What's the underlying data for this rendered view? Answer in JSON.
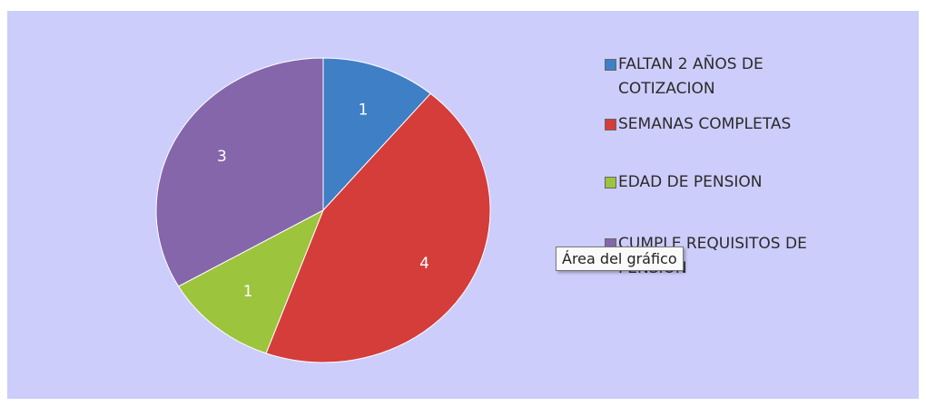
{
  "chart_data": {
    "type": "pie",
    "categories": [
      "FALTAN 2 AÑOS DE COTIZACION",
      "SEMANAS COMPLETAS",
      "EDAD DE PENSION",
      "CUMPLE REQUISITOS DE PENSION"
    ],
    "values": [
      1,
      4,
      1,
      3
    ],
    "colors": [
      "#3f7fc6",
      "#d43d3a",
      "#9cc43c",
      "#8566ab"
    ],
    "legend": "right",
    "tooltip": "Área del gráfico"
  }
}
